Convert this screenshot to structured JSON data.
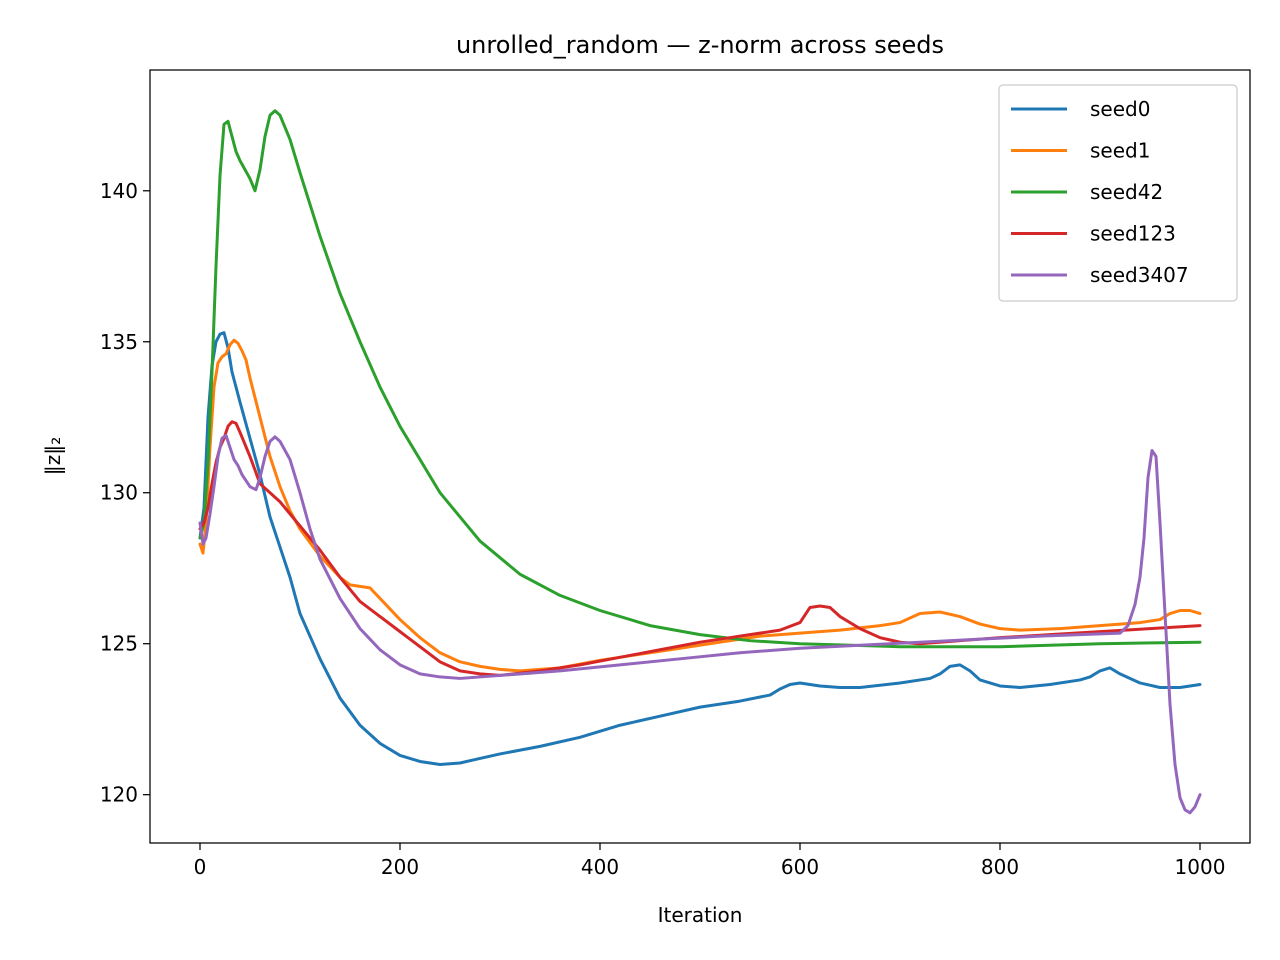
{
  "chart_data": {
    "type": "line",
    "title": "unrolled_random — z-norm across seeds",
    "xlabel": "Iteration",
    "ylabel": "‖z‖₂",
    "xlim": [
      -50,
      1050
    ],
    "ylim": [
      118.4,
      144.0
    ],
    "xticks": [
      0,
      200,
      400,
      600,
      800,
      1000
    ],
    "yticks": [
      120,
      125,
      130,
      135,
      140
    ],
    "grid": false,
    "legend_position": "top-right",
    "series": [
      {
        "name": "seed0",
        "color": "#1f77b4",
        "points": [
          [
            0,
            128.5
          ],
          [
            4,
            129.5
          ],
          [
            8,
            132.5
          ],
          [
            12,
            134.2
          ],
          [
            16,
            135.0
          ],
          [
            20,
            135.25
          ],
          [
            24,
            135.3
          ],
          [
            28,
            134.8
          ],
          [
            32,
            134.0
          ],
          [
            36,
            133.5
          ],
          [
            40,
            133.0
          ],
          [
            50,
            131.8
          ],
          [
            60,
            130.6
          ],
          [
            70,
            129.2
          ],
          [
            80,
            128.2
          ],
          [
            90,
            127.2
          ],
          [
            100,
            126.0
          ],
          [
            120,
            124.5
          ],
          [
            140,
            123.2
          ],
          [
            160,
            122.3
          ],
          [
            180,
            121.7
          ],
          [
            200,
            121.3
          ],
          [
            220,
            121.1
          ],
          [
            240,
            121.0
          ],
          [
            260,
            121.05
          ],
          [
            280,
            121.2
          ],
          [
            300,
            121.35
          ],
          [
            340,
            121.6
          ],
          [
            380,
            121.9
          ],
          [
            420,
            122.3
          ],
          [
            460,
            122.6
          ],
          [
            500,
            122.9
          ],
          [
            540,
            123.1
          ],
          [
            570,
            123.3
          ],
          [
            580,
            123.5
          ],
          [
            590,
            123.65
          ],
          [
            600,
            123.7
          ],
          [
            620,
            123.6
          ],
          [
            640,
            123.55
          ],
          [
            660,
            123.55
          ],
          [
            700,
            123.7
          ],
          [
            730,
            123.85
          ],
          [
            740,
            124.0
          ],
          [
            750,
            124.25
          ],
          [
            760,
            124.3
          ],
          [
            770,
            124.1
          ],
          [
            780,
            123.8
          ],
          [
            800,
            123.6
          ],
          [
            820,
            123.55
          ],
          [
            850,
            123.65
          ],
          [
            880,
            123.8
          ],
          [
            890,
            123.9
          ],
          [
            900,
            124.1
          ],
          [
            910,
            124.2
          ],
          [
            920,
            124.0
          ],
          [
            940,
            123.7
          ],
          [
            960,
            123.55
          ],
          [
            980,
            123.55
          ],
          [
            1000,
            123.65
          ]
        ]
      },
      {
        "name": "seed1",
        "color": "#ff7f0e",
        "points": [
          [
            0,
            128.3
          ],
          [
            3,
            128.0
          ],
          [
            6,
            129.0
          ],
          [
            10,
            131.5
          ],
          [
            14,
            133.5
          ],
          [
            18,
            134.3
          ],
          [
            22,
            134.5
          ],
          [
            26,
            134.6
          ],
          [
            30,
            134.9
          ],
          [
            34,
            135.05
          ],
          [
            38,
            134.95
          ],
          [
            42,
            134.7
          ],
          [
            46,
            134.4
          ],
          [
            50,
            133.8
          ],
          [
            60,
            132.5
          ],
          [
            70,
            131.2
          ],
          [
            80,
            130.2
          ],
          [
            90,
            129.4
          ],
          [
            100,
            128.8
          ],
          [
            120,
            127.9
          ],
          [
            140,
            127.2
          ],
          [
            150,
            126.95
          ],
          [
            160,
            126.9
          ],
          [
            170,
            126.85
          ],
          [
            180,
            126.5
          ],
          [
            200,
            125.8
          ],
          [
            220,
            125.2
          ],
          [
            240,
            124.7
          ],
          [
            260,
            124.4
          ],
          [
            280,
            124.25
          ],
          [
            300,
            124.15
          ],
          [
            320,
            124.1
          ],
          [
            360,
            124.2
          ],
          [
            400,
            124.45
          ],
          [
            440,
            124.65
          ],
          [
            480,
            124.85
          ],
          [
            520,
            125.05
          ],
          [
            560,
            125.25
          ],
          [
            600,
            125.35
          ],
          [
            640,
            125.45
          ],
          [
            680,
            125.6
          ],
          [
            700,
            125.7
          ],
          [
            710,
            125.85
          ],
          [
            720,
            126.0
          ],
          [
            740,
            126.05
          ],
          [
            760,
            125.9
          ],
          [
            780,
            125.65
          ],
          [
            800,
            125.5
          ],
          [
            820,
            125.45
          ],
          [
            860,
            125.5
          ],
          [
            900,
            125.6
          ],
          [
            940,
            125.7
          ],
          [
            960,
            125.8
          ],
          [
            970,
            126.0
          ],
          [
            980,
            126.1
          ],
          [
            990,
            126.1
          ],
          [
            1000,
            126.0
          ]
        ]
      },
      {
        "name": "seed42",
        "color": "#2ca02c",
        "points": [
          [
            0,
            128.5
          ],
          [
            4,
            129.0
          ],
          [
            8,
            131.0
          ],
          [
            12,
            134.0
          ],
          [
            16,
            137.5
          ],
          [
            20,
            140.5
          ],
          [
            24,
            142.2
          ],
          [
            28,
            142.3
          ],
          [
            32,
            141.8
          ],
          [
            36,
            141.3
          ],
          [
            40,
            141.0
          ],
          [
            45,
            140.7
          ],
          [
            50,
            140.4
          ],
          [
            55,
            140.0
          ],
          [
            60,
            140.7
          ],
          [
            65,
            141.8
          ],
          [
            70,
            142.5
          ],
          [
            75,
            142.65
          ],
          [
            80,
            142.5
          ],
          [
            90,
            141.7
          ],
          [
            100,
            140.6
          ],
          [
            120,
            138.5
          ],
          [
            140,
            136.6
          ],
          [
            160,
            135.0
          ],
          [
            180,
            133.5
          ],
          [
            200,
            132.2
          ],
          [
            240,
            130.0
          ],
          [
            280,
            128.4
          ],
          [
            320,
            127.3
          ],
          [
            360,
            126.6
          ],
          [
            400,
            126.1
          ],
          [
            450,
            125.6
          ],
          [
            500,
            125.3
          ],
          [
            550,
            125.1
          ],
          [
            600,
            125.0
          ],
          [
            700,
            124.9
          ],
          [
            800,
            124.9
          ],
          [
            900,
            125.0
          ],
          [
            1000,
            125.05
          ]
        ]
      },
      {
        "name": "seed123",
        "color": "#d62728",
        "points": [
          [
            0,
            128.8
          ],
          [
            4,
            129.0
          ],
          [
            8,
            129.5
          ],
          [
            12,
            130.3
          ],
          [
            16,
            131.0
          ],
          [
            20,
            131.5
          ],
          [
            24,
            131.8
          ],
          [
            28,
            132.2
          ],
          [
            32,
            132.35
          ],
          [
            36,
            132.3
          ],
          [
            40,
            132.0
          ],
          [
            50,
            131.2
          ],
          [
            60,
            130.3
          ],
          [
            70,
            130.0
          ],
          [
            80,
            129.7
          ],
          [
            90,
            129.3
          ],
          [
            100,
            128.9
          ],
          [
            120,
            128.1
          ],
          [
            140,
            127.2
          ],
          [
            160,
            126.4
          ],
          [
            180,
            125.9
          ],
          [
            200,
            125.4
          ],
          [
            220,
            124.9
          ],
          [
            240,
            124.4
          ],
          [
            260,
            124.1
          ],
          [
            280,
            124.0
          ],
          [
            300,
            123.95
          ],
          [
            340,
            124.1
          ],
          [
            380,
            124.3
          ],
          [
            420,
            124.55
          ],
          [
            460,
            124.8
          ],
          [
            500,
            125.05
          ],
          [
            540,
            125.25
          ],
          [
            580,
            125.45
          ],
          [
            600,
            125.7
          ],
          [
            610,
            126.2
          ],
          [
            620,
            126.25
          ],
          [
            630,
            126.2
          ],
          [
            640,
            125.9
          ],
          [
            660,
            125.5
          ],
          [
            680,
            125.2
          ],
          [
            700,
            125.05
          ],
          [
            720,
            125.0
          ],
          [
            760,
            125.1
          ],
          [
            800,
            125.2
          ],
          [
            850,
            125.3
          ],
          [
            900,
            125.4
          ],
          [
            950,
            125.5
          ],
          [
            1000,
            125.6
          ]
        ]
      },
      {
        "name": "seed3407",
        "color": "#9467bd",
        "points": [
          [
            0,
            129.0
          ],
          [
            3,
            128.3
          ],
          [
            6,
            128.5
          ],
          [
            10,
            129.3
          ],
          [
            14,
            130.2
          ],
          [
            18,
            131.2
          ],
          [
            22,
            131.8
          ],
          [
            26,
            131.9
          ],
          [
            30,
            131.5
          ],
          [
            34,
            131.1
          ],
          [
            38,
            130.9
          ],
          [
            42,
            130.6
          ],
          [
            50,
            130.2
          ],
          [
            56,
            130.1
          ],
          [
            60,
            130.5
          ],
          [
            65,
            131.2
          ],
          [
            70,
            131.7
          ],
          [
            75,
            131.85
          ],
          [
            80,
            131.7
          ],
          [
            90,
            131.1
          ],
          [
            100,
            130.0
          ],
          [
            110,
            128.8
          ],
          [
            120,
            127.8
          ],
          [
            140,
            126.5
          ],
          [
            160,
            125.5
          ],
          [
            180,
            124.8
          ],
          [
            200,
            124.3
          ],
          [
            220,
            124.0
          ],
          [
            240,
            123.9
          ],
          [
            260,
            123.85
          ],
          [
            300,
            123.95
          ],
          [
            360,
            124.1
          ],
          [
            420,
            124.3
          ],
          [
            480,
            124.5
          ],
          [
            540,
            124.7
          ],
          [
            600,
            124.85
          ],
          [
            660,
            124.95
          ],
          [
            720,
            125.05
          ],
          [
            780,
            125.15
          ],
          [
            840,
            125.25
          ],
          [
            880,
            125.3
          ],
          [
            920,
            125.35
          ],
          [
            928,
            125.6
          ],
          [
            935,
            126.3
          ],
          [
            940,
            127.2
          ],
          [
            944,
            128.5
          ],
          [
            948,
            130.5
          ],
          [
            952,
            131.4
          ],
          [
            956,
            131.2
          ],
          [
            960,
            129.0
          ],
          [
            965,
            126.0
          ],
          [
            970,
            123.0
          ],
          [
            975,
            121.0
          ],
          [
            980,
            119.9
          ],
          [
            985,
            119.5
          ],
          [
            990,
            119.4
          ],
          [
            995,
            119.6
          ],
          [
            1000,
            120.0
          ]
        ]
      }
    ]
  }
}
